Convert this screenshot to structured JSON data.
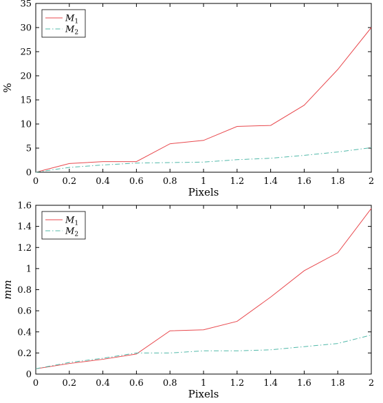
{
  "chart_data": [
    {
      "type": "line",
      "xlabel": "Pixels",
      "ylabel": "%",
      "ylabel_italic": false,
      "xlim": [
        0,
        2
      ],
      "ylim": [
        0,
        35
      ],
      "xticks": [
        "0",
        "0.2",
        "0.4",
        "0.6",
        "0.8",
        "1",
        "1.2",
        "1.4",
        "1.6",
        "1.8",
        "2"
      ],
      "yticks": [
        "0",
        "5",
        "10",
        "15",
        "20",
        "25",
        "30",
        "35"
      ],
      "grid": false,
      "legend_position": "top-left",
      "x": [
        0,
        0.2,
        0.4,
        0.6,
        0.8,
        1.0,
        1.2,
        1.4,
        1.6,
        1.8,
        2.0
      ],
      "series": [
        {
          "name": "M1",
          "label_base": "M",
          "label_sub": "1",
          "color": "#e8474c",
          "style": "solid",
          "values": [
            0,
            1.8,
            2.2,
            2.2,
            5.9,
            6.6,
            9.5,
            9.7,
            13.9,
            21.3,
            30.0
          ]
        },
        {
          "name": "M2",
          "label_base": "M",
          "label_sub": "2",
          "color": "#4fb8a8",
          "style": "dashdot",
          "values": [
            0,
            1.0,
            1.5,
            1.9,
            2.0,
            2.1,
            2.6,
            2.9,
            3.5,
            4.2,
            5.1
          ]
        }
      ]
    },
    {
      "type": "line",
      "xlabel": "Pixels",
      "ylabel": "mm",
      "ylabel_italic": true,
      "xlim": [
        0,
        2
      ],
      "ylim": [
        0,
        1.6
      ],
      "xticks": [
        "0",
        "0.2",
        "0.4",
        "0.6",
        "0.8",
        "1",
        "1.2",
        "1.4",
        "1.6",
        "1.8",
        "2"
      ],
      "yticks": [
        "0",
        "0.2",
        "0.4",
        "0.6",
        "0.8",
        "1",
        "1.2",
        "1.4",
        "1.6"
      ],
      "grid": false,
      "legend_position": "top-left",
      "x": [
        0,
        0.2,
        0.4,
        0.6,
        0.8,
        1.0,
        1.2,
        1.4,
        1.6,
        1.8,
        2.0
      ],
      "series": [
        {
          "name": "M1",
          "label_base": "M",
          "label_sub": "1",
          "color": "#e8474c",
          "style": "solid",
          "values": [
            0.05,
            0.1,
            0.14,
            0.19,
            0.41,
            0.42,
            0.5,
            0.73,
            0.98,
            1.15,
            1.57
          ]
        },
        {
          "name": "M2",
          "label_base": "M",
          "label_sub": "2",
          "color": "#4fb8a8",
          "style": "dashdot",
          "values": [
            0.05,
            0.11,
            0.15,
            0.2,
            0.2,
            0.22,
            0.22,
            0.23,
            0.26,
            0.29,
            0.37
          ]
        }
      ]
    }
  ]
}
